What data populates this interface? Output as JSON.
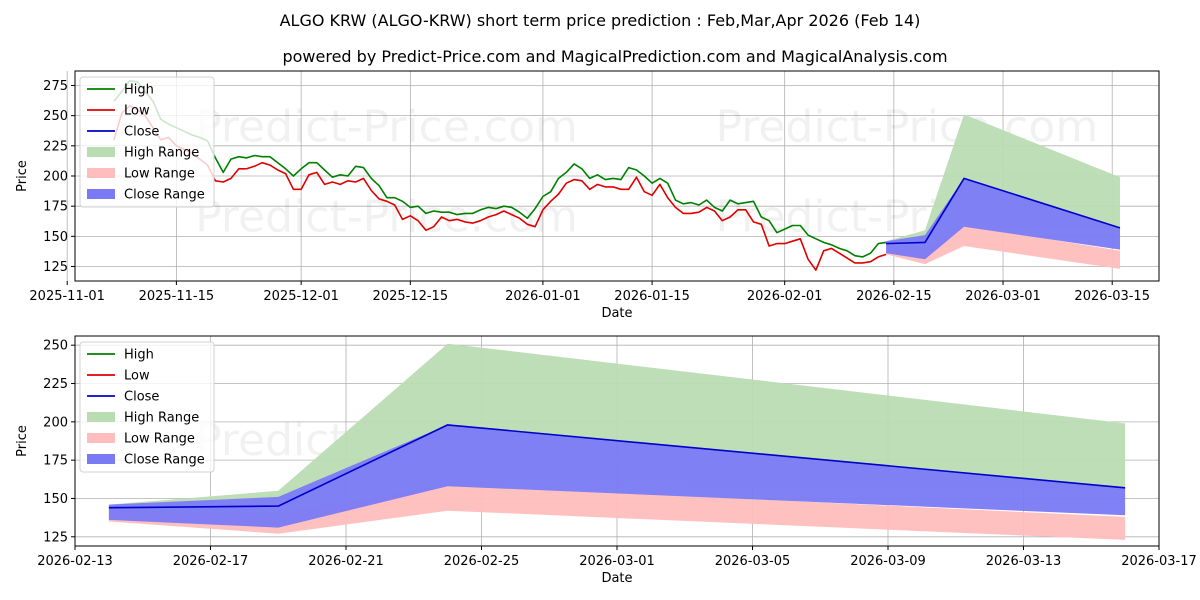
{
  "title": "ALGO KRW (ALGO-KRW) short term price prediction : Feb,Mar,Apr 2026 (Feb 14)",
  "subtitle": "powered by Predict-Price.com and MagicalPrediction.com and MagicalAnalysis.com",
  "watermark": "Predict-Price.com",
  "colors": {
    "high": "#008000",
    "low": "#e00000",
    "close": "#0000cc",
    "high_range": "#b9dcb3",
    "low_range": "#ffbdbd",
    "close_range": "#7a7af5"
  },
  "legend": [
    "High",
    "Low",
    "Close",
    "High Range",
    "Low Range",
    "Close Range"
  ],
  "chart_data": [
    {
      "type": "line",
      "name": "overview",
      "xlabel": "Date",
      "ylabel": "Price",
      "ylim": [
        113,
        287
      ],
      "xlim": [
        "2025-11-02",
        "2026-03-21"
      ],
      "yticks": [
        125,
        150,
        175,
        200,
        225,
        250,
        275
      ],
      "xticks": [
        "2025-11-01",
        "2025-11-15",
        "2025-12-01",
        "2025-12-15",
        "2026-01-01",
        "2026-01-15",
        "2026-02-01",
        "2026-02-15",
        "2026-03-01",
        "2026-03-15"
      ],
      "grid": true,
      "legend_position": "top-left",
      "series": [
        {
          "name": "High",
          "x": [
            "2025-11-07",
            "2025-11-08",
            "2025-11-09",
            "2025-11-10",
            "2025-11-11",
            "2025-11-12",
            "2025-11-13",
            "2025-11-14",
            "2025-11-15",
            "2025-11-16",
            "2025-11-17",
            "2025-11-18",
            "2025-11-19",
            "2025-11-20",
            "2025-11-21",
            "2025-11-22",
            "2025-11-23",
            "2025-11-24",
            "2025-11-25",
            "2025-11-26",
            "2025-11-27",
            "2025-11-28",
            "2025-11-29",
            "2025-11-30",
            "2025-12-01",
            "2025-12-02",
            "2025-12-03",
            "2025-12-04",
            "2025-12-05",
            "2025-12-06",
            "2025-12-07",
            "2025-12-08",
            "2025-12-09",
            "2025-12-10",
            "2025-12-11",
            "2025-12-12",
            "2025-12-13",
            "2025-12-14",
            "2025-12-15",
            "2025-12-16",
            "2025-12-17",
            "2025-12-18",
            "2025-12-19",
            "2025-12-20",
            "2025-12-21",
            "2025-12-22",
            "2025-12-23",
            "2025-12-24",
            "2025-12-25",
            "2025-12-26",
            "2025-12-27",
            "2025-12-28",
            "2025-12-29",
            "2025-12-30",
            "2025-12-31",
            "2026-01-01",
            "2026-01-02",
            "2026-01-03",
            "2026-01-04",
            "2026-01-05",
            "2026-01-06",
            "2026-01-07",
            "2026-01-08",
            "2026-01-09",
            "2026-01-10",
            "2026-01-11",
            "2026-01-12",
            "2026-01-13",
            "2026-01-14",
            "2026-01-15",
            "2026-01-16",
            "2026-01-17",
            "2026-01-18",
            "2026-01-19",
            "2026-01-20",
            "2026-01-21",
            "2026-01-22",
            "2026-01-23",
            "2026-01-24",
            "2026-01-25",
            "2026-01-26",
            "2026-01-27",
            "2026-01-28",
            "2026-01-29",
            "2026-01-30",
            "2026-01-31",
            "2026-02-01",
            "2026-02-02",
            "2026-02-03",
            "2026-02-04",
            "2026-02-05",
            "2026-02-06",
            "2026-02-07",
            "2026-02-08",
            "2026-02-09",
            "2026-02-10",
            "2026-02-11",
            "2026-02-12",
            "2026-02-13",
            "2026-02-14"
          ],
          "values": [
            262,
            270,
            279,
            278,
            270,
            262,
            247,
            243,
            240,
            237,
            234,
            232,
            229,
            215,
            203,
            214,
            216,
            215,
            217,
            216,
            216,
            211,
            206,
            200,
            206,
            211,
            211,
            205,
            199,
            201,
            200,
            208,
            207,
            198,
            192,
            182,
            182,
            179,
            174,
            175,
            169,
            171,
            170,
            170,
            168,
            169,
            169,
            172,
            174,
            173,
            175,
            174,
            170,
            165,
            173,
            183,
            187,
            198,
            203,
            210,
            206,
            198,
            201,
            197,
            198,
            197,
            207,
            205,
            200,
            194,
            198,
            194,
            180,
            177,
            178,
            176,
            180,
            174,
            171,
            180,
            177,
            178,
            179,
            166,
            163,
            153,
            156,
            159,
            159,
            151,
            148,
            145,
            143,
            140,
            138,
            134,
            133,
            136,
            144,
            145
          ]
        },
        {
          "name": "Low",
          "x": [
            "2025-11-07",
            "2025-11-08",
            "2025-11-09",
            "2025-11-10",
            "2025-11-11",
            "2025-11-12",
            "2025-11-13",
            "2025-11-14",
            "2025-11-15",
            "2025-11-16",
            "2025-11-17",
            "2025-11-18",
            "2025-11-19",
            "2025-11-20",
            "2025-11-21",
            "2025-11-22",
            "2025-11-23",
            "2025-11-24",
            "2025-11-25",
            "2025-11-26",
            "2025-11-27",
            "2025-11-28",
            "2025-11-29",
            "2025-11-30",
            "2025-12-01",
            "2025-12-02",
            "2025-12-03",
            "2025-12-04",
            "2025-12-05",
            "2025-12-06",
            "2025-12-07",
            "2025-12-08",
            "2025-12-09",
            "2025-12-10",
            "2025-12-11",
            "2025-12-12",
            "2025-12-13",
            "2025-12-14",
            "2025-12-15",
            "2025-12-16",
            "2025-12-17",
            "2025-12-18",
            "2025-12-19",
            "2025-12-20",
            "2025-12-21",
            "2025-12-22",
            "2025-12-23",
            "2025-12-24",
            "2025-12-25",
            "2025-12-26",
            "2025-12-27",
            "2025-12-28",
            "2025-12-29",
            "2025-12-30",
            "2025-12-31",
            "2026-01-01",
            "2026-01-02",
            "2026-01-03",
            "2026-01-04",
            "2026-01-05",
            "2026-01-06",
            "2026-01-07",
            "2026-01-08",
            "2026-01-09",
            "2026-01-10",
            "2026-01-11",
            "2026-01-12",
            "2026-01-13",
            "2026-01-14",
            "2026-01-15",
            "2026-01-16",
            "2026-01-17",
            "2026-01-18",
            "2026-01-19",
            "2026-01-20",
            "2026-01-21",
            "2026-01-22",
            "2026-01-23",
            "2026-01-24",
            "2026-01-25",
            "2026-01-26",
            "2026-01-27",
            "2026-01-28",
            "2026-01-29",
            "2026-01-30",
            "2026-01-31",
            "2026-02-01",
            "2026-02-02",
            "2026-02-03",
            "2026-02-04",
            "2026-02-05",
            "2026-02-06",
            "2026-02-07",
            "2026-02-08",
            "2026-02-09",
            "2026-02-10",
            "2026-02-11",
            "2026-02-12",
            "2026-02-13",
            "2026-02-14"
          ],
          "values": [
            230,
            252,
            258,
            255,
            250,
            240,
            230,
            232,
            225,
            222,
            219,
            214,
            209,
            196,
            195,
            198,
            206,
            206,
            208,
            211,
            209,
            205,
            202,
            189,
            189,
            201,
            203,
            193,
            195,
            193,
            196,
            195,
            198,
            188,
            181,
            179,
            176,
            164,
            167,
            163,
            155,
            158,
            166,
            163,
            164,
            162,
            161,
            163,
            166,
            168,
            171,
            168,
            165,
            160,
            158,
            172,
            179,
            185,
            194,
            197,
            196,
            189,
            193,
            191,
            191,
            189,
            189,
            199,
            187,
            184,
            193,
            182,
            174,
            169,
            169,
            170,
            174,
            171,
            163,
            166,
            172,
            172,
            162,
            160,
            142,
            144,
            144,
            146,
            148,
            131,
            122,
            138,
            140,
            136,
            132,
            128,
            128,
            129,
            133,
            135
          ]
        },
        {
          "name": "Close",
          "x": [
            "2026-02-14",
            "2026-02-19",
            "2026-02-24",
            "2026-03-16"
          ],
          "values": [
            144,
            145,
            198,
            157
          ]
        }
      ],
      "ranges": [
        {
          "name": "High Range",
          "x": [
            "2026-02-14",
            "2026-02-19",
            "2026-02-24",
            "2026-03-16"
          ],
          "upper": [
            146,
            155,
            251,
            199
          ],
          "lower": [
            136,
            131,
            158,
            156
          ]
        },
        {
          "name": "Low Range",
          "x": [
            "2026-02-14",
            "2026-02-19",
            "2026-02-24",
            "2026-03-16"
          ],
          "upper": [
            143,
            140,
            159,
            138
          ],
          "lower": [
            135,
            127,
            142,
            123
          ]
        },
        {
          "name": "Close Range",
          "x": [
            "2026-02-14",
            "2026-02-19",
            "2026-02-24",
            "2026-03-16"
          ],
          "upper": [
            146,
            151,
            198,
            157
          ],
          "lower": [
            136,
            131,
            158,
            139
          ]
        }
      ]
    },
    {
      "type": "line",
      "name": "forecast",
      "xlabel": "Date",
      "ylabel": "Price",
      "ylim": [
        119,
        256
      ],
      "xlim": [
        "2026-02-13",
        "2026-03-17"
      ],
      "yticks": [
        125,
        150,
        175,
        200,
        225,
        250
      ],
      "xticks": [
        "2026-02-13",
        "2026-02-17",
        "2026-02-21",
        "2026-02-25",
        "2026-03-01",
        "2026-03-05",
        "2026-03-09",
        "2026-03-13",
        "2026-03-17"
      ],
      "grid": true,
      "legend_position": "top-left",
      "series": [
        {
          "name": "Close",
          "x": [
            "2026-02-14",
            "2026-02-19",
            "2026-02-24",
            "2026-03-16"
          ],
          "values": [
            144,
            145,
            198,
            157
          ]
        }
      ],
      "ranges": [
        {
          "name": "High Range",
          "x": [
            "2026-02-14",
            "2026-02-19",
            "2026-02-24",
            "2026-03-16"
          ],
          "upper": [
            146,
            155,
            251,
            199
          ],
          "lower": [
            136,
            131,
            158,
            156
          ]
        },
        {
          "name": "Low Range",
          "x": [
            "2026-02-14",
            "2026-02-19",
            "2026-02-24",
            "2026-03-16"
          ],
          "upper": [
            143,
            140,
            159,
            138
          ],
          "lower": [
            135,
            127,
            142,
            123
          ]
        },
        {
          "name": "Close Range",
          "x": [
            "2026-02-14",
            "2026-02-19",
            "2026-02-24",
            "2026-03-16"
          ],
          "upper": [
            146,
            151,
            198,
            157
          ],
          "lower": [
            136,
            131,
            158,
            139
          ]
        }
      ]
    }
  ]
}
